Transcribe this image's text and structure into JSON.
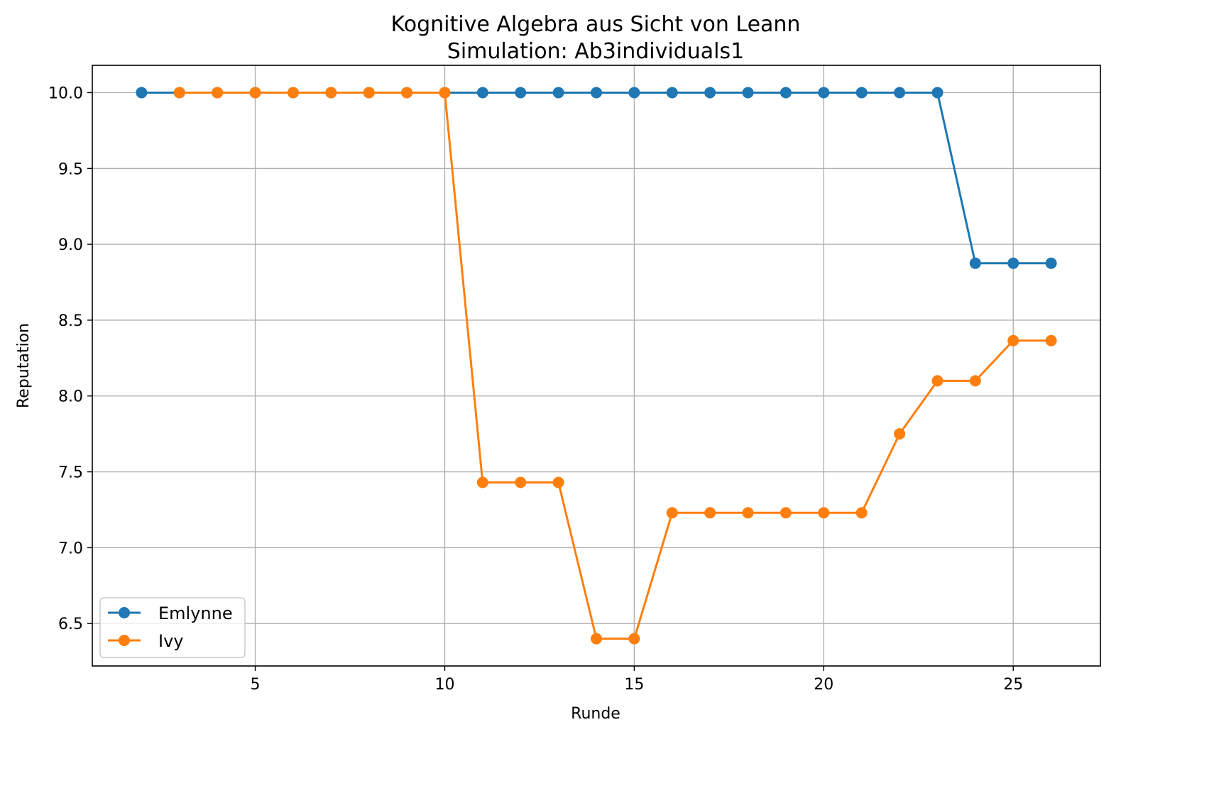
{
  "chart_data": {
    "type": "line",
    "title": "Kognitive Algebra aus Sicht von Leann",
    "subtitle": "Simulation: Ab3individuals1",
    "xlabel": "Runde",
    "ylabel": "Reputation",
    "xlim": [
      0.7,
      27.3
    ],
    "ylim": [
      6.22,
      10.18
    ],
    "xticks": [
      5,
      10,
      15,
      20,
      25
    ],
    "yticks": [
      6.5,
      7.0,
      7.5,
      8.0,
      8.5,
      9.0,
      9.5,
      10.0
    ],
    "ytick_labels": [
      "6.5",
      "7.0",
      "7.5",
      "8.0",
      "8.5",
      "9.0",
      "9.5",
      "10.0"
    ],
    "grid": true,
    "legend_position": "lower-left",
    "series": [
      {
        "name": "Emlynne",
        "color": "#1f77b4",
        "x": [
          2,
          3,
          4,
          5,
          6,
          7,
          8,
          9,
          10,
          11,
          12,
          13,
          14,
          15,
          16,
          17,
          18,
          19,
          20,
          21,
          22,
          23,
          24,
          25,
          26
        ],
        "y": [
          10.0,
          10.0,
          10.0,
          10.0,
          10.0,
          10.0,
          10.0,
          10.0,
          10.0,
          10.0,
          10.0,
          10.0,
          10.0,
          10.0,
          10.0,
          10.0,
          10.0,
          10.0,
          10.0,
          10.0,
          10.0,
          10.0,
          8.875,
          8.875,
          8.875
        ]
      },
      {
        "name": "Ivy",
        "color": "#ff7f0e",
        "x": [
          3,
          4,
          5,
          6,
          7,
          8,
          9,
          10,
          11,
          12,
          13,
          14,
          15,
          16,
          17,
          18,
          19,
          20,
          21,
          22,
          23,
          24,
          25,
          26
        ],
        "y": [
          10.0,
          10.0,
          10.0,
          10.0,
          10.0,
          10.0,
          10.0,
          10.0,
          7.43,
          7.43,
          7.43,
          6.4,
          6.4,
          7.23,
          7.23,
          7.23,
          7.23,
          7.23,
          7.23,
          7.75,
          8.1,
          8.1,
          8.365,
          8.365
        ]
      }
    ]
  }
}
